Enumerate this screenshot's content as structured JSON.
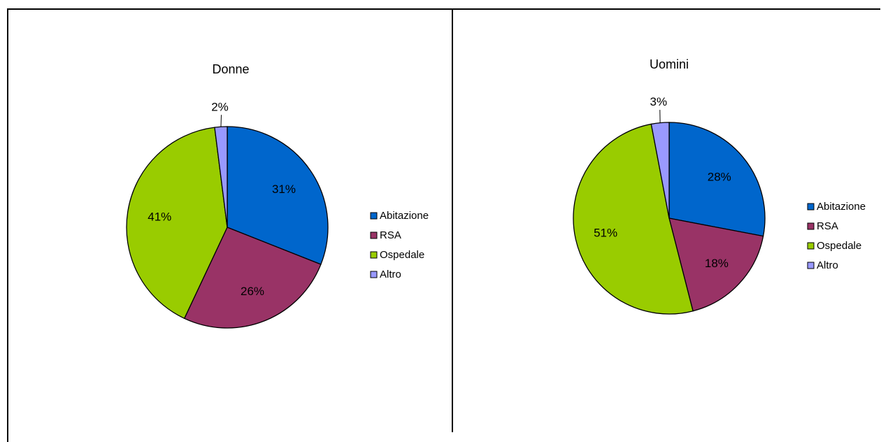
{
  "chart_data": [
    {
      "type": "pie",
      "title": "Donne",
      "categories": [
        "Abitazione",
        "RSA",
        "Ospedale",
        "Altro"
      ],
      "values": [
        31,
        26,
        41,
        2
      ],
      "labels": [
        "31%",
        "26%",
        "41%",
        "2%"
      ],
      "colors": [
        "#0066CC",
        "#993366",
        "#99CC00",
        "#9999FF"
      ],
      "legend_position": "right"
    },
    {
      "type": "pie",
      "title": "Uomini",
      "categories": [
        "Abitazione",
        "RSA",
        "Ospedale",
        "Altro"
      ],
      "values": [
        28,
        18,
        51,
        3
      ],
      "labels": [
        "28%",
        "18%",
        "51%",
        "3%"
      ],
      "colors": [
        "#0066CC",
        "#993366",
        "#99CC00",
        "#9999FF"
      ],
      "legend_position": "right"
    }
  ]
}
